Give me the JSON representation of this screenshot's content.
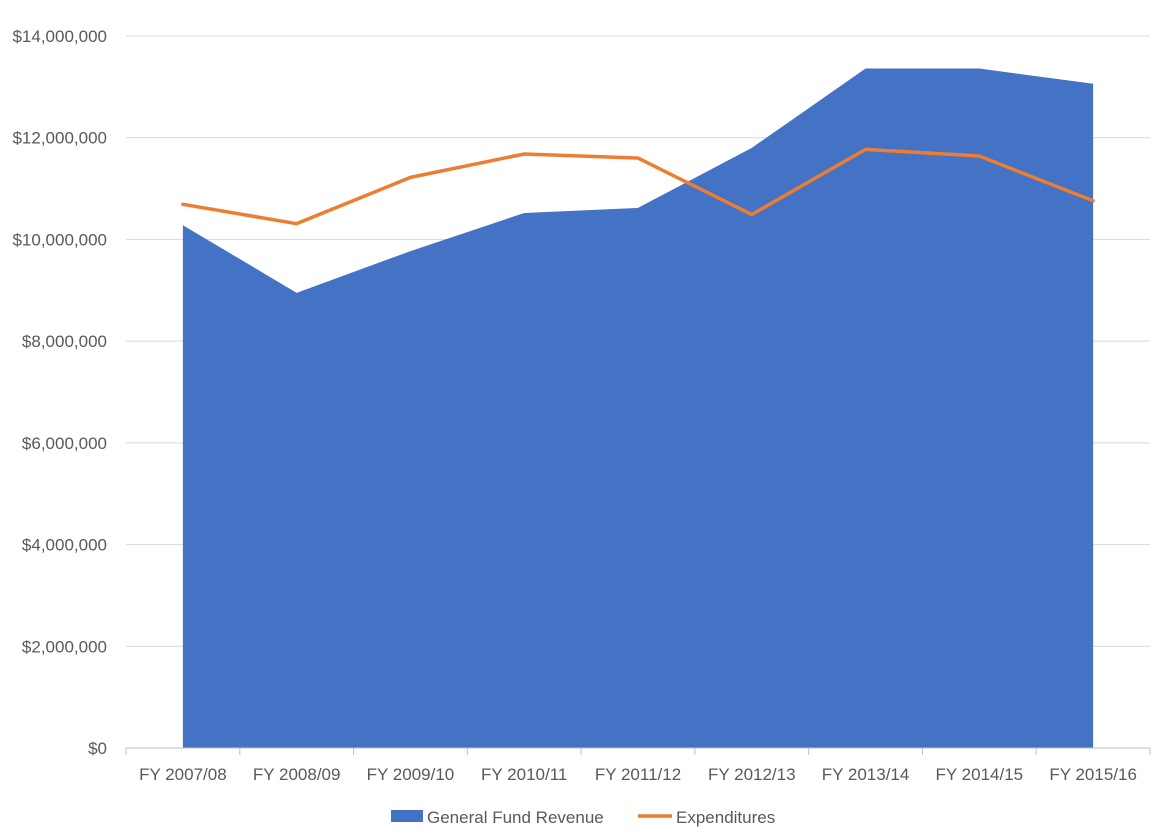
{
  "chart_data": {
    "type": "area",
    "categories": [
      "FY 2007/08",
      "FY 2008/09",
      "FY 2009/10",
      "FY 2010/11",
      "FY 2011/12",
      "FY 2012/13",
      "FY 2013/14",
      "FY 2014/15",
      "FY 2015/16"
    ],
    "series": [
      {
        "name": "General Fund Revenue",
        "kind": "area",
        "color": "#4472C4",
        "values": [
          10280000,
          8950000,
          9770000,
          10520000,
          10620000,
          11800000,
          13360000,
          13360000,
          13060000
        ]
      },
      {
        "name": "Expenditures",
        "kind": "line",
        "color": "#ED7D31",
        "values": [
          10690000,
          10310000,
          11220000,
          11680000,
          11600000,
          10490000,
          11770000,
          11640000,
          10760000
        ]
      }
    ],
    "yticks": [
      "$0",
      "$2,000,000",
      "$4,000,000",
      "$6,000,000",
      "$8,000,000",
      "$10,000,000",
      "$12,000,000",
      "$14,000,000"
    ],
    "ylim": [
      0,
      14000000
    ],
    "grid": true,
    "legend_position": "bottom",
    "gridline_color": "#D9D9D9",
    "axis_color": "#BFBFBF"
  }
}
